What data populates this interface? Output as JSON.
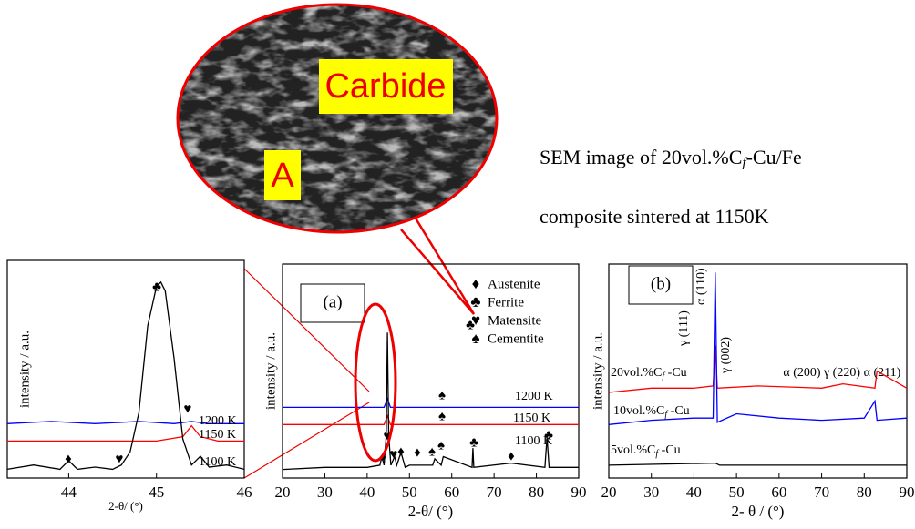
{
  "figure": {
    "carbide_label": "Carbide",
    "a_label": "A",
    "caption_line1": {
      "main": "SEM  image  of  20vol.%C",
      "sub": "f",
      "rest": "-Cu/Fe"
    },
    "caption_line2": "composite sintered at 1150K"
  },
  "chart_data": [
    {
      "type": "line",
      "x_label": "2-θ/ (°)",
      "y_label": "intensity / a.u.",
      "xlim": [
        43.3,
        46
      ],
      "xticks": [
        44,
        45,
        46
      ],
      "ylim": [
        0,
        100
      ],
      "series": [
        {
          "name": "1200 K",
          "color": "#0000ff",
          "x": [
            43.3,
            43.8,
            44.3,
            44.8,
            45.2,
            45.4,
            45.6,
            46.0
          ],
          "values": [
            25,
            26,
            25,
            26,
            25,
            26,
            25,
            25
          ]
        },
        {
          "name": "1150 K",
          "color": "#ff0000",
          "x": [
            43.3,
            44.0,
            44.5,
            45.0,
            45.3,
            45.4,
            45.5,
            45.7,
            46.0
          ],
          "values": [
            17,
            17,
            17,
            17,
            19,
            24,
            19,
            17,
            17
          ]
        },
        {
          "name": "1100 K",
          "color": "#000000",
          "x": [
            43.3,
            43.6,
            43.9,
            44.0,
            44.1,
            44.3,
            44.5,
            44.6,
            44.7,
            44.8,
            44.9,
            45.0,
            45.05,
            45.1,
            45.2,
            45.3,
            45.4,
            45.5,
            45.6,
            45.8,
            46.0
          ],
          "values": [
            4,
            6,
            4,
            8,
            4,
            5,
            4,
            6,
            12,
            30,
            70,
            88,
            90,
            86,
            55,
            18,
            6,
            10,
            5,
            6,
            4
          ]
        }
      ],
      "annotations": [
        "♣",
        "♥",
        "♦",
        "♥"
      ]
    },
    {
      "type": "line",
      "label": "(a)",
      "x_label": "2-θ/ (°)",
      "y_label": "intensity / a.u.",
      "xlim": [
        20,
        90
      ],
      "xticks": [
        20,
        30,
        40,
        50,
        60,
        70,
        80,
        90
      ],
      "ylim": [
        0,
        100
      ],
      "series": [
        {
          "name": "1200 K",
          "color": "#0000ff",
          "x": [
            20,
            30,
            44,
            44.8,
            45.5,
            60,
            90
          ],
          "values": [
            33,
            33,
            33,
            37,
            33,
            33,
            33
          ]
        },
        {
          "name": "1150 K",
          "color": "#ff0000",
          "x": [
            20,
            30,
            44,
            44.8,
            45.5,
            60,
            90
          ],
          "values": [
            25,
            25,
            25,
            29,
            25,
            25,
            25
          ]
        },
        {
          "name": "1100 K",
          "color": "#000000",
          "x": [
            20,
            30,
            40,
            43,
            43.5,
            44,
            44.5,
            44.8,
            45.1,
            45.6,
            46.5,
            47,
            48,
            49,
            50,
            55.5,
            56,
            57.5,
            58,
            64.8,
            65,
            65.2,
            74,
            82,
            82.5,
            83,
            90
          ],
          "values": [
            4,
            5,
            5,
            6,
            10,
            6,
            20,
            68,
            20,
            6,
            10,
            6,
            12,
            5,
            6,
            6,
            9,
            6,
            10,
            5,
            14,
            5,
            7,
            5,
            19,
            5,
            5
          ]
        }
      ],
      "legend": [
        {
          "symbol": "♦",
          "text": "Austenite"
        },
        {
          "symbol": "♣",
          "text": "Ferrite"
        },
        {
          "symbol": "♥",
          "text": "Matensite"
        },
        {
          "symbol": "♠",
          "text": "Cementite"
        }
      ],
      "annotations": [
        "♣",
        "♠",
        "♠",
        "♦",
        "♥",
        "♥",
        "♦",
        "♦",
        "♠",
        "♠",
        "♣",
        "♦",
        "♣"
      ]
    },
    {
      "type": "line",
      "label": "(b)",
      "x_label": "2- θ / (°)",
      "y_label": "intensity / a.u.",
      "xlim": [
        20,
        90
      ],
      "xticks": [
        20,
        30,
        40,
        50,
        60,
        70,
        80,
        90
      ],
      "ylim": [
        0,
        100
      ],
      "series": [
        {
          "name": {
            "main": "20vol.%C",
            "sub": "f",
            "rest": " -Cu"
          },
          "color": "#ff0000",
          "x": [
            20,
            30,
            40,
            44.5,
            45,
            45.5,
            55,
            70,
            75,
            82.5,
            83,
            90
          ],
          "values": [
            40,
            42,
            42,
            43,
            62,
            42,
            43,
            42,
            44,
            42,
            50,
            42
          ]
        },
        {
          "name": {
            "main": "10vol.%C",
            "sub": "f",
            "rest": " -Cu"
          },
          "color": "#0000ff",
          "x": [
            20,
            30,
            40,
            44.5,
            45,
            45.5,
            50,
            60,
            70,
            80,
            82.5,
            83,
            90
          ],
          "values": [
            25,
            27,
            28,
            28,
            96,
            26,
            30,
            28,
            27,
            28,
            36,
            27,
            28
          ]
        },
        {
          "name": {
            "main": "5vol.%C",
            "sub": "f",
            "rest": " -Cu"
          },
          "color": "#000000",
          "x": [
            20,
            45,
            46,
            90
          ],
          "values": [
            6,
            7,
            6,
            6
          ]
        }
      ],
      "annotations": [
        "γ (111)",
        "α (110)",
        "γ (002)",
        "α (200)",
        "γ (220)",
        "α (211)"
      ]
    }
  ]
}
